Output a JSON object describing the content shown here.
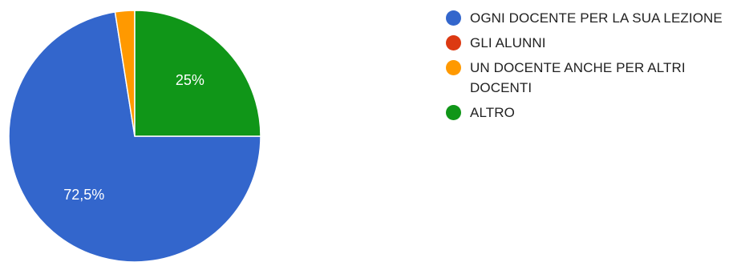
{
  "chart_data": {
    "type": "pie",
    "title": "",
    "categories": [
      "OGNI DOCENTE PER LA SUA LEZIONE",
      "GLI ALUNNI",
      "UN DOCENTE ANCHE PER ALTRI DOCENTI",
      "ALTRO"
    ],
    "values": [
      72.5,
      0,
      2.5,
      25
    ],
    "colors": [
      "#3366cc",
      "#dc3912",
      "#ff9900",
      "#109618"
    ],
    "data_labels": [
      "72,5%",
      "",
      "",
      "25%"
    ],
    "legend_position": "right"
  }
}
